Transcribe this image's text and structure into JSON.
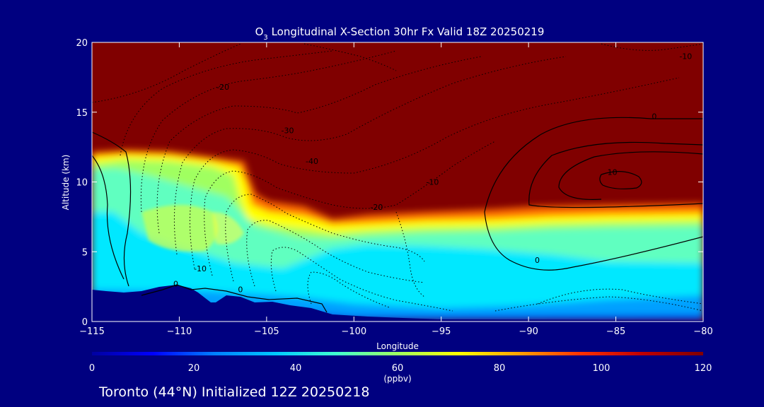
{
  "chart_data": {
    "type": "heatmap",
    "title": "O₃ Longitudinal X-Section 30hr  Fx Valid 18Z 20250219",
    "title_base": "O",
    "title_sub": "3",
    "title_rest": " Longitudinal X-Section 30hr  Fx Valid 18Z 20250219",
    "xlabel": "Longitude",
    "ylabel": "Altitude (km)",
    "xlim": [
      -115,
      -80
    ],
    "ylim": [
      0,
      20
    ],
    "x_ticks": [
      -115,
      -110,
      -105,
      -100,
      -95,
      -90,
      -85,
      -80
    ],
    "x_tick_labels": [
      "−115",
      "−110",
      "−105",
      "−100",
      "−95",
      "−90",
      "−85",
      "−80"
    ],
    "y_ticks": [
      0,
      5,
      10,
      15,
      20
    ],
    "y_tick_labels": [
      "0",
      "5",
      "10",
      "15",
      "20"
    ],
    "colorbar": {
      "range": [
        0,
        120
      ],
      "ticks": [
        0,
        20,
        40,
        60,
        80,
        100,
        120
      ],
      "tick_labels": [
        "0",
        "20",
        "40",
        "60",
        "80",
        "100",
        "120"
      ],
      "unit_label": "(ppbv)",
      "colors": [
        "#0000a0",
        "#0000ff",
        "#0080ff",
        "#00c8ff",
        "#40ffd0",
        "#a0ff60",
        "#ffff00",
        "#ffa000",
        "#ff3000",
        "#c00000",
        "#800000"
      ]
    },
    "field_description": {
      "tropopause_altitude_km": [
        [
          -115,
          12.3
        ],
        [
          -112,
          12.5
        ],
        [
          -108,
          12.0
        ],
        [
          -106,
          11.2
        ],
        [
          -105,
          8.5
        ],
        [
          -103,
          8.5
        ],
        [
          -101,
          7.6
        ],
        [
          -98,
          7.8
        ],
        [
          -95,
          7.6
        ],
        [
          -92,
          7.8
        ],
        [
          -88,
          8.1
        ],
        [
          -84,
          8.3
        ],
        [
          -80,
          8.4
        ]
      ],
      "surface_altitude_km": [
        [
          -115,
          2.2
        ],
        [
          -113,
          2.0
        ],
        [
          -111,
          2.5
        ],
        [
          -110,
          2.7
        ],
        [
          -108,
          2.0
        ],
        [
          -107,
          1.7
        ],
        [
          -106,
          1.6
        ],
        [
          -104,
          1.5
        ],
        [
          -102,
          1.0
        ],
        [
          -100,
          0.6
        ],
        [
          -95,
          0.4
        ],
        [
          -90,
          0.2
        ],
        [
          -80,
          0.1
        ]
      ]
    },
    "contour_labels": [
      {
        "text": "-20",
        "lon": -107.5,
        "alt": 16.6
      },
      {
        "text": "-30",
        "lon": -103.8,
        "alt": 13.5
      },
      {
        "text": "-40",
        "lon": -102.4,
        "alt": 11.3
      },
      {
        "text": "-10",
        "lon": -95.5,
        "alt": 9.8
      },
      {
        "text": "-20",
        "lon": -98.7,
        "alt": 8.0
      },
      {
        "text": "-10",
        "lon": -108.8,
        "alt": 3.6
      },
      {
        "text": "0",
        "lon": -110.2,
        "alt": 2.5
      },
      {
        "text": "0",
        "lon": -106.5,
        "alt": 2.1
      },
      {
        "text": "0",
        "lon": -89.5,
        "alt": 4.2
      },
      {
        "text": "0",
        "lon": -82.8,
        "alt": 14.5
      },
      {
        "text": "10",
        "lon": -85.2,
        "alt": 10.5
      },
      {
        "text": "-10",
        "lon": -81.0,
        "alt": 18.8
      }
    ]
  },
  "footer": {
    "text": "Toronto (44°N) Initialized 12Z 20250218"
  }
}
